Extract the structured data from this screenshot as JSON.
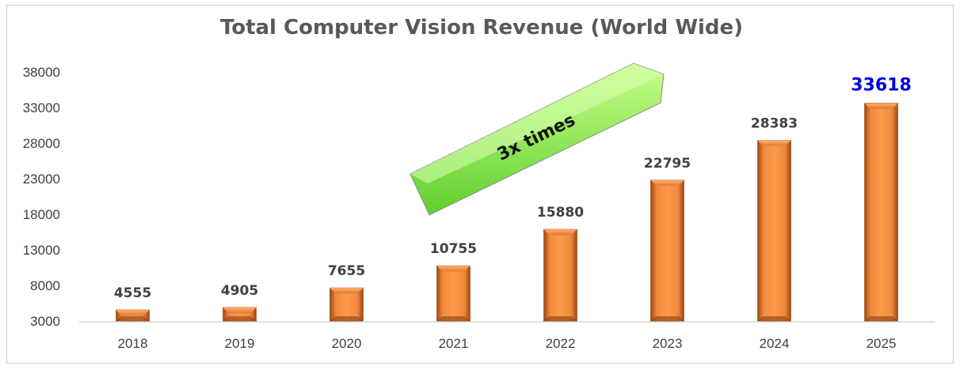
{
  "chart_data": {
    "type": "bar",
    "title": "Total Computer Vision Revenue (World Wide)",
    "xlabel": "",
    "ylabel": "",
    "categories": [
      "2018",
      "2019",
      "2020",
      "2021",
      "2022",
      "2023",
      "2024",
      "2025"
    ],
    "values": [
      4555,
      4905,
      7655,
      10755,
      15880,
      22795,
      28383,
      33618
    ],
    "yticks": [
      3000,
      8000,
      13000,
      18000,
      23000,
      28000,
      33000,
      38000
    ],
    "ylim": [
      3000,
      38000
    ],
    "grid": false,
    "legend": "none",
    "highlight_index": 7,
    "annotation": {
      "text": "3x times"
    },
    "colors": {
      "bar": "#f28a3e",
      "bar_dark": "#b5541c",
      "highlight_label": "#0000e6",
      "arrow": "#7fe84a"
    }
  }
}
